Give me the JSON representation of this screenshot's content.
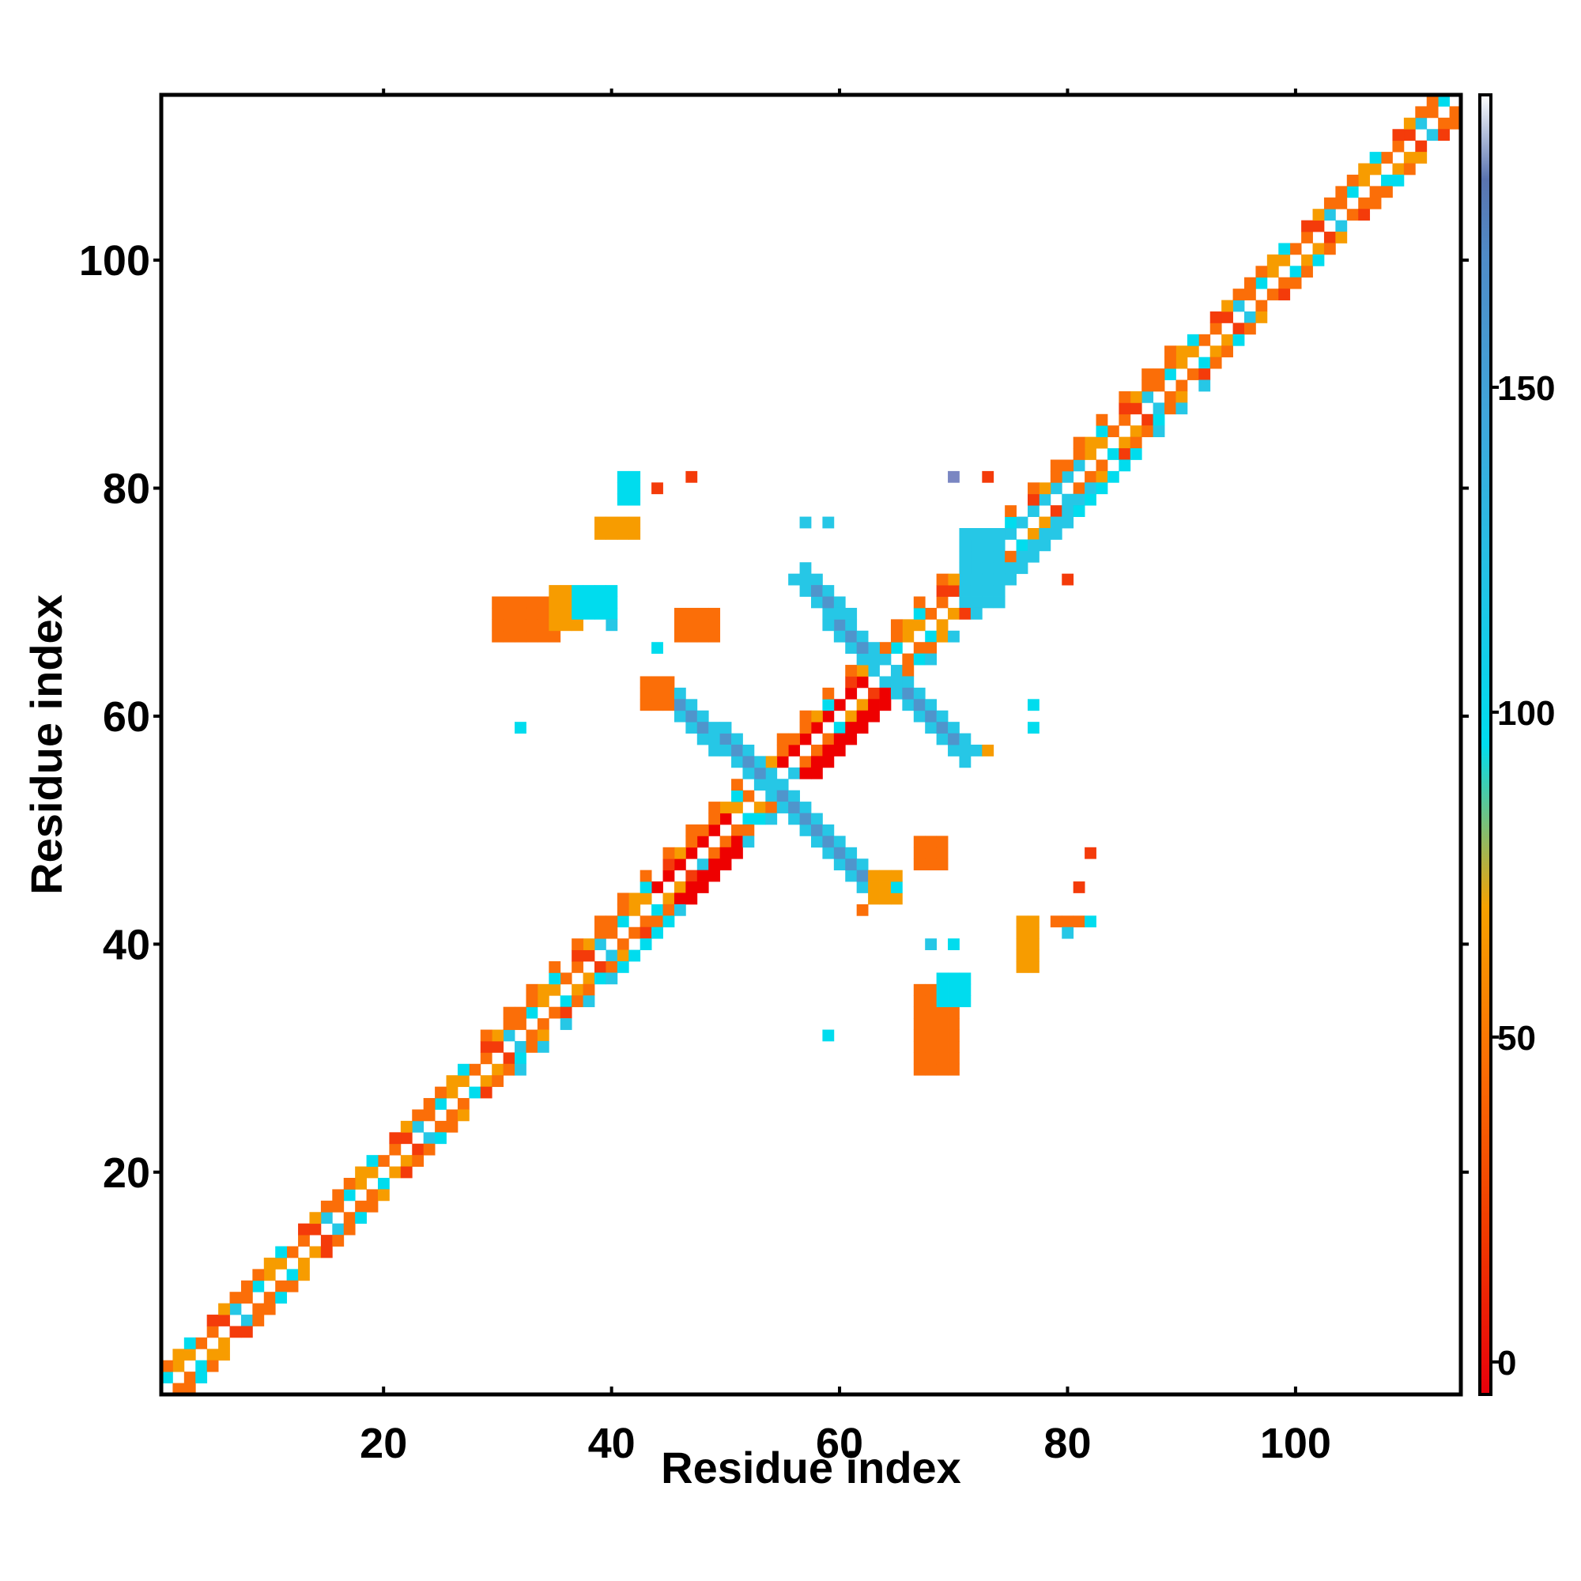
{
  "chart_data": {
    "type": "heatmap",
    "title": "",
    "xlabel": "Residue index",
    "ylabel": "Residue index",
    "xlim": [
      1,
      114
    ],
    "ylim": [
      1,
      114
    ],
    "x_ticks": [
      20,
      40,
      60,
      80,
      100
    ],
    "y_ticks": [
      20,
      40,
      60,
      80,
      100
    ],
    "colorbar": {
      "ticks": [
        0,
        50,
        100,
        150
      ],
      "range": [
        -5,
        195
      ],
      "stops": [
        {
          "value": -5,
          "color": "#e8000b"
        },
        {
          "value": 20,
          "color": "#f03b00"
        },
        {
          "value": 45,
          "color": "#fb6d04"
        },
        {
          "value": 70,
          "color": "#f7a100"
        },
        {
          "value": 95,
          "color": "#00dcee"
        },
        {
          "value": 120,
          "color": "#22c3e6"
        },
        {
          "value": 145,
          "color": "#3fa7dc"
        },
        {
          "value": 170,
          "color": "#4f8bc7"
        },
        {
          "value": 182,
          "color": "#5a74b0"
        },
        {
          "value": 195,
          "color": "#ffffff"
        }
      ]
    },
    "palette": {
      "red": "#ee0000",
      "red_orange": "#f43b0a",
      "orange": "#fb6e08",
      "amber": "#f79c00",
      "cyan": "#00dcee",
      "sky": "#26c7e6",
      "steel": "#4f95cc",
      "lavender": "#7a86c2"
    },
    "bands": [
      {
        "x_from": 1,
        "x_to": 113,
        "offset": 1,
        "colors": [
          "#fb6e08",
          "#f79c00",
          "#f43b0a",
          "#00dcee",
          "#fb6e08",
          "#26c7e6",
          "#f79c00",
          "#fb6e08"
        ]
      },
      {
        "x_from": 1,
        "x_to": 114,
        "offset": 0,
        "colors": [
          "#ffffff"
        ]
      },
      {
        "x_from": 2,
        "x_to": 114,
        "offset": -1,
        "colors": [
          "#f79c00",
          "#fb6e08",
          "#00dcee",
          "#f43b0a",
          "#fb6e08",
          "#f79c00",
          "#26c7e6",
          "#fb6e08"
        ]
      },
      {
        "x_from": 1,
        "x_to": 112,
        "offset": 2,
        "colors": [
          "#f43b0a",
          "#fb6e08",
          "#00dcee",
          "#f79c00",
          "#fb6e08",
          "#ffffff",
          "#fb6e08",
          "#f79c00"
        ]
      },
      {
        "x_from": 3,
        "x_to": 114,
        "offset": -2,
        "colors": [
          "#fb6e08",
          "#f43b0a",
          "#f79c00",
          "#00dcee",
          "#fb6e08",
          "#ffffff",
          "#fb6e08"
        ]
      },
      {
        "x_from": 28,
        "x_to": 90,
        "offset": 3,
        "colors": [
          "#f79c00",
          "#fb6e08",
          "#ffffff",
          "#00dcee",
          "#ffffff",
          "#f43b0a"
        ]
      },
      {
        "x_from": 31,
        "x_to": 93,
        "offset": -3,
        "colors": [
          "#fb6e08",
          "#ffffff",
          "#f79c00",
          "#ffffff",
          "#26c7e6",
          "#f43b0a"
        ]
      }
    ],
    "diagonal_blocks": [
      {
        "x": [
          44,
          51
        ],
        "y": [
          44,
          51
        ],
        "color": "#ee0000",
        "density": 0.55
      },
      {
        "x": [
          55,
          64
        ],
        "y": [
          55,
          64
        ],
        "color": "#ee0000",
        "density": 0.55
      },
      {
        "x": [
          71,
          82
        ],
        "y": [
          71,
          82
        ],
        "color": "#26c7e6",
        "density": 0.45
      },
      {
        "x": [
          38,
          45
        ],
        "y": [
          38,
          45
        ],
        "color": "#00dcee",
        "density": 0.3
      },
      {
        "x": [
          78,
          86
        ],
        "y": [
          78,
          86
        ],
        "color": "#00dcee",
        "density": 0.3
      }
    ],
    "cross_arms": [
      {
        "from": [
          45,
          62
        ],
        "to": [
          54,
          54
        ],
        "width": 3,
        "color": "#4f95cc",
        "edge": "#26c7e6"
      },
      {
        "from": [
          54,
          54
        ],
        "to": [
          63,
          45
        ],
        "width": 3,
        "color": "#4f95cc",
        "edge": "#26c7e6"
      },
      {
        "from": [
          57,
          72
        ],
        "to": [
          63,
          65
        ],
        "width": 3,
        "color": "#4f95cc",
        "edge": "#26c7e6"
      },
      {
        "from": [
          65,
          63
        ],
        "to": [
          71,
          57
        ],
        "width": 3,
        "color": "#4f95cc",
        "edge": "#26c7e6"
      }
    ],
    "patches": [
      {
        "x": [
          30,
          35
        ],
        "y": [
          67,
          70
        ],
        "color": "#fb6e08"
      },
      {
        "x": [
          35,
          37
        ],
        "y": [
          68,
          71
        ],
        "color": "#f79c00"
      },
      {
        "x": [
          37,
          40
        ],
        "y": [
          69,
          71
        ],
        "color": "#00dcee"
      },
      {
        "x": [
          43,
          45
        ],
        "y": [
          61,
          63
        ],
        "color": "#fb6e08"
      },
      {
        "x": [
          46,
          49
        ],
        "y": [
          67,
          69
        ],
        "color": "#fb6e08"
      },
      {
        "x": [
          39,
          42
        ],
        "y": [
          76,
          77
        ],
        "color": "#f79c00"
      },
      {
        "x": [
          41,
          42
        ],
        "y": [
          79,
          81
        ],
        "color": "#00dcee"
      },
      {
        "x": [
          67,
          70
        ],
        "y": [
          29,
          36
        ],
        "color": "#fb6e08"
      },
      {
        "x": [
          69,
          71
        ],
        "y": [
          35,
          37
        ],
        "color": "#00dcee"
      },
      {
        "x": [
          67,
          69
        ],
        "y": [
          47,
          49
        ],
        "color": "#fb6e08"
      },
      {
        "x": [
          71,
          74
        ],
        "y": [
          70,
          76
        ],
        "color": "#26c7e6"
      },
      {
        "x": [
          76,
          77
        ],
        "y": [
          38,
          42
        ],
        "color": "#f79c00"
      },
      {
        "x": [
          79,
          81
        ],
        "y": [
          42,
          42
        ],
        "color": "#fb6e08"
      },
      {
        "x": [
          63,
          65
        ],
        "y": [
          44,
          46
        ],
        "color": "#f79c00"
      }
    ],
    "dots": [
      {
        "x": 32,
        "y": 59,
        "color": "#00dcee"
      },
      {
        "x": 40,
        "y": 68,
        "color": "#26c7e6"
      },
      {
        "x": 44,
        "y": 66,
        "color": "#00dcee"
      },
      {
        "x": 44,
        "y": 80,
        "color": "#f43b0a"
      },
      {
        "x": 47,
        "y": 81,
        "color": "#f43b0a"
      },
      {
        "x": 57,
        "y": 77,
        "color": "#26c7e6"
      },
      {
        "x": 59,
        "y": 77,
        "color": "#26c7e6"
      },
      {
        "x": 59,
        "y": 32,
        "color": "#00dcee"
      },
      {
        "x": 62,
        "y": 43,
        "color": "#fb6e08"
      },
      {
        "x": 65,
        "y": 45,
        "color": "#00dcee"
      },
      {
        "x": 68,
        "y": 40,
        "color": "#26c7e6"
      },
      {
        "x": 70,
        "y": 40,
        "color": "#00dcee"
      },
      {
        "x": 71,
        "y": 58,
        "color": "#26c7e6"
      },
      {
        "x": 73,
        "y": 57,
        "color": "#f79c00"
      },
      {
        "x": 73,
        "y": 81,
        "color": "#f43b0a"
      },
      {
        "x": 77,
        "y": 59,
        "color": "#00dcee"
      },
      {
        "x": 77,
        "y": 61,
        "color": "#00dcee"
      },
      {
        "x": 81,
        "y": 45,
        "color": "#f43b0a"
      },
      {
        "x": 82,
        "y": 48,
        "color": "#f43b0a"
      },
      {
        "x": 82,
        "y": 42,
        "color": "#00dcee"
      },
      {
        "x": 80,
        "y": 41,
        "color": "#26c7e6"
      },
      {
        "x": 80,
        "y": 72,
        "color": "#f43b0a"
      },
      {
        "x": 70,
        "y": 81,
        "color": "#7a86c2"
      }
    ]
  }
}
